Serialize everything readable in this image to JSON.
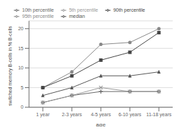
{
  "chart_data": {
    "type": "line",
    "xlabel": "age",
    "ylabel": "switched memory B-cells in % B-cells",
    "categories": [
      "1 year",
      "2-3 years",
      "4-5 years",
      "6-10 years",
      "11-18 years"
    ],
    "series": [
      {
        "name": "95th percentile",
        "values": [
          5.0,
          9.0,
          16.0,
          16.5,
          20.0
        ],
        "marker": "circle",
        "color": "#888888",
        "line_style": "solid"
      },
      {
        "name": "90th percentile",
        "values": [
          5.0,
          8.0,
          12.0,
          14.0,
          19.0
        ],
        "marker": "square",
        "color": "#444444",
        "line_style": "solid"
      },
      {
        "name": "median",
        "values": [
          3.0,
          5.0,
          8.0,
          8.0,
          9.0
        ],
        "marker": "triangle",
        "color": "#555555",
        "line_style": "solid"
      },
      {
        "name": "10th percentile",
        "values": [
          1.2,
          3.0,
          4.0,
          4.0,
          4.0
        ],
        "marker": "plus",
        "color": "#666666",
        "line_style": "solid"
      },
      {
        "name": "5th percentile",
        "values": [
          1.2,
          3.0,
          5.0,
          4.0,
          4.0
        ],
        "marker": "x",
        "color": "#999999",
        "line_style": "solid"
      }
    ],
    "ylim": [
      0,
      22
    ],
    "yticks": [
      0,
      5,
      10,
      15,
      20
    ],
    "grid": true,
    "legend": "upper left"
  }
}
